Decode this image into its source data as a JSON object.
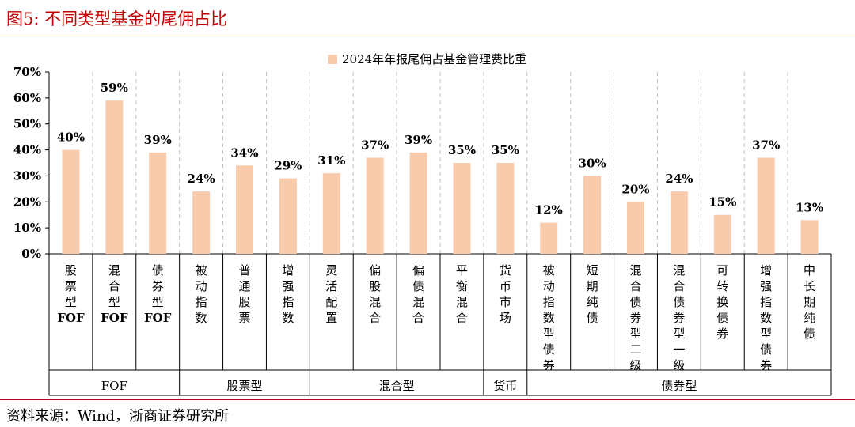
{
  "figure": {
    "title": "图5:   不同类型基金的尾佣占比",
    "source": "资料来源：Wind，浙商证券研究所"
  },
  "colors": {
    "bar": "#f8cbad",
    "title": "#c00000",
    "gridline": "#bfbfbf"
  },
  "chart_data": {
    "type": "bar",
    "categories": [
      "股票型FOF",
      "混合型FOF",
      "债券型FOF",
      "被动指数",
      "普通股票",
      "增强指数",
      "灵活配置",
      "偏股混合",
      "偏债混合",
      "平衡混合",
      "货币市场",
      "被动指数型债券",
      "短期纯债",
      "混合债券型二级",
      "混合债券型一级",
      "可转换债券",
      "增强指数型债券",
      "中长期纯债"
    ],
    "series": [
      {
        "name": "2024年年报尾佣占基金管理费比重",
        "values": [
          40,
          59,
          39,
          24,
          34,
          29,
          31,
          37,
          39,
          35,
          35,
          12,
          30,
          20,
          24,
          15,
          37,
          13
        ]
      }
    ],
    "value_labels": [
      "40%",
      "59%",
      "39%",
      "24%",
      "34%",
      "29%",
      "31%",
      "37%",
      "39%",
      "35%",
      "35%",
      "12%",
      "30%",
      "20%",
      "24%",
      "15%",
      "37%",
      "13%"
    ],
    "y_ticks": [
      "0%",
      "10%",
      "20%",
      "30%",
      "40%",
      "50%",
      "60%",
      "70%"
    ],
    "ylim": [
      0,
      70
    ],
    "groups": [
      {
        "label": "FOF",
        "span": 3
      },
      {
        "label": "股票型",
        "span": 3
      },
      {
        "label": "混合型",
        "span": 4
      },
      {
        "label": "货币",
        "span": 1
      },
      {
        "label": "债券型",
        "span": 7
      }
    ],
    "legend_position": "top-center",
    "grid": "dashed vertical separators"
  }
}
